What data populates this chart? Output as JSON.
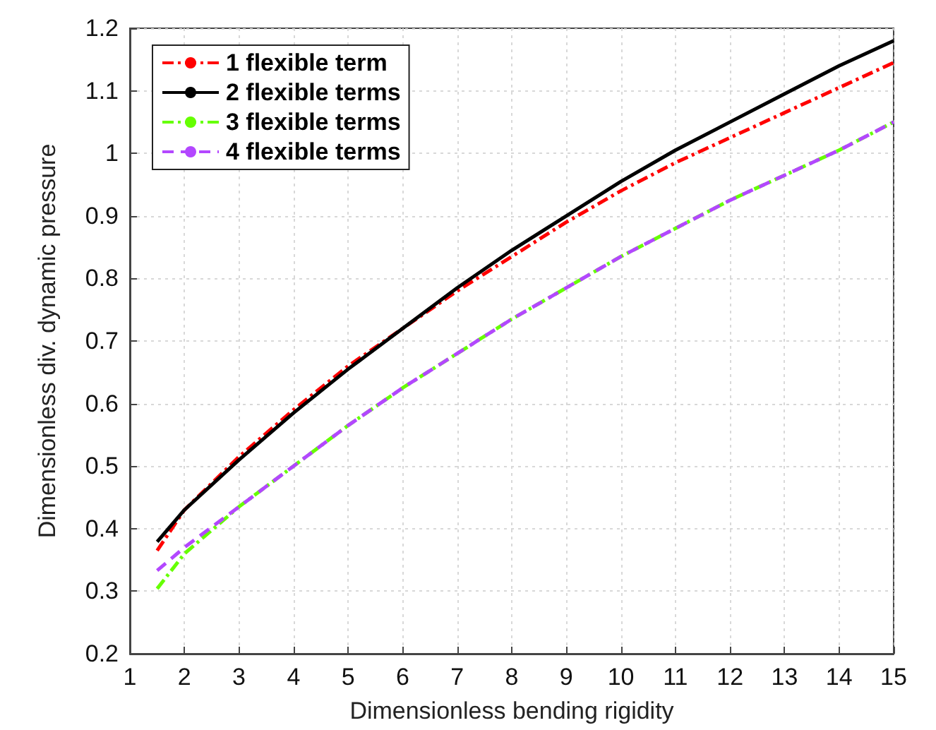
{
  "chart_data": {
    "type": "line",
    "xlabel": "Dimensionless bending rigidity",
    "ylabel": "Dimensionless div. dynamic pressure",
    "x": [
      1.5,
      2,
      3,
      4,
      5,
      6,
      7,
      8,
      9,
      10,
      11,
      12,
      13,
      14,
      15
    ],
    "series": [
      {
        "name": "1 flexible term",
        "color": "#ff0000",
        "line_style": "dashdot",
        "values": [
          0.365,
          0.43,
          0.515,
          0.59,
          0.66,
          0.72,
          0.78,
          0.835,
          0.89,
          0.94,
          0.985,
          1.025,
          1.065,
          1.105,
          1.145
        ]
      },
      {
        "name": "2 flexible terms",
        "color": "#000000",
        "line_style": "solid",
        "values": [
          0.379,
          0.43,
          0.51,
          0.585,
          0.655,
          0.72,
          0.785,
          0.845,
          0.9,
          0.955,
          1.005,
          1.05,
          1.095,
          1.14,
          1.18
        ]
      },
      {
        "name": "3 flexible terms",
        "color": "#66ff00",
        "line_style": "dashdot",
        "values": [
          0.304,
          0.36,
          0.435,
          0.5,
          0.565,
          0.625,
          0.68,
          0.735,
          0.785,
          0.835,
          0.88,
          0.925,
          0.965,
          1.005,
          1.05
        ]
      },
      {
        "name": "4 flexible terms",
        "color": "#b347ff",
        "line_style": "dashed",
        "values": [
          0.333,
          0.37,
          0.435,
          0.5,
          0.565,
          0.625,
          0.68,
          0.735,
          0.785,
          0.835,
          0.88,
          0.925,
          0.965,
          1.005,
          1.05
        ]
      }
    ],
    "xlim": [
      1,
      15
    ],
    "xticks": [
      1,
      2,
      3,
      4,
      5,
      6,
      7,
      8,
      9,
      10,
      11,
      12,
      13,
      14,
      15
    ],
    "ylim": [
      0.2,
      1.2
    ],
    "yticks": [
      0.2,
      0.3,
      0.4,
      0.5,
      0.6,
      0.7,
      0.8,
      0.9,
      1,
      1.1,
      1.2
    ],
    "grid": true,
    "legend": "top left",
    "marker": "none"
  }
}
